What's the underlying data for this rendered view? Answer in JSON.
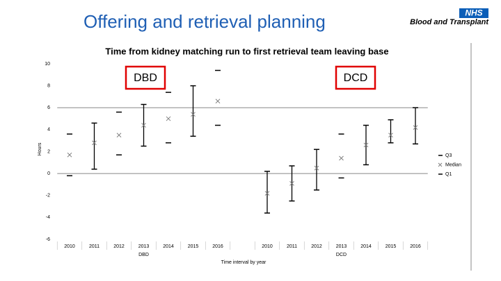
{
  "header": {
    "title": "Offering and retrieval planning",
    "logo_nhs": "NHS",
    "logo_text": "Blood and Transplant"
  },
  "annotations": [
    "DBD",
    "DCD"
  ],
  "chart_data": {
    "type": "stock",
    "title": "Time from kidney matching run to first retrieval team leaving base",
    "y_label": "Hours",
    "x_label": "Time interval by year",
    "groups": [
      {
        "name": "DBD",
        "from": 0,
        "to": 6
      },
      {
        "name": "DCD",
        "from": 8,
        "to": 14
      }
    ],
    "categories": [
      "2010",
      "2011",
      "2012",
      "2013",
      "2014",
      "2015",
      "2016",
      null,
      "2010",
      "2011",
      "2012",
      "2013",
      "2014",
      "2015",
      "2016"
    ],
    "series": [
      {
        "name": "Q3",
        "color": "#000000",
        "marker": "dash",
        "values": [
          3.6,
          4.6,
          5.6,
          6.3,
          7.4,
          8.0,
          9.4,
          null,
          0.2,
          0.7,
          2.2,
          3.6,
          4.4,
          4.9,
          6.0
        ]
      },
      {
        "name": "Median",
        "color": "#808080",
        "marker": "cross",
        "values": [
          1.7,
          2.8,
          3.5,
          4.4,
          5.0,
          5.4,
          6.6,
          null,
          -1.8,
          -0.9,
          0.5,
          1.4,
          2.6,
          3.5,
          4.2
        ]
      },
      {
        "name": "Q1",
        "color": "#000000",
        "marker": "dash",
        "values": [
          -0.2,
          0.4,
          1.7,
          2.5,
          2.8,
          3.4,
          4.4,
          null,
          -3.6,
          -2.5,
          -1.5,
          -0.4,
          0.8,
          2.8,
          2.7
        ]
      }
    ],
    "whisker": [
      false,
      true,
      false,
      true,
      false,
      true,
      false,
      false,
      true,
      true,
      true,
      false,
      true,
      true,
      true
    ],
    "ylim": [
      -6,
      10
    ],
    "yticks": [
      -6,
      -4,
      -2,
      0,
      2,
      4,
      6,
      8,
      10
    ],
    "grid_ticks": [
      3,
      6
    ],
    "legend": "right"
  }
}
